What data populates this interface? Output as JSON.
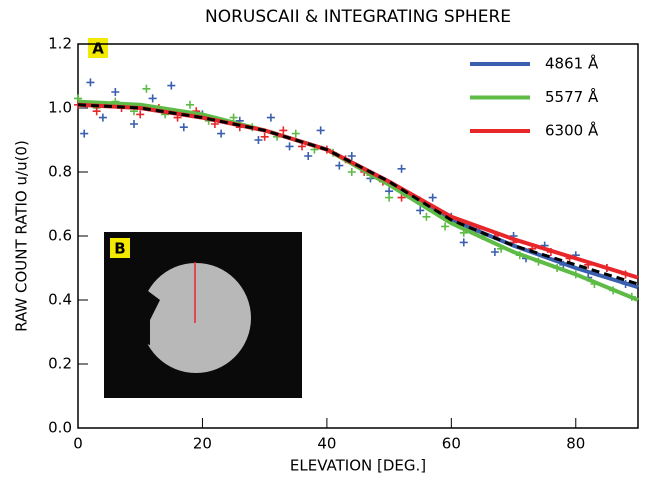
{
  "chart_data": {
    "type": "scatter",
    "title": "NORUSCAII & INTEGRATING SPHERE",
    "x_label": "ELEVATION [DEG.]",
    "y_label": "RAW COUNT RATIO u/u(0)",
    "annotations": [
      "A",
      "B"
    ],
    "xlim": [
      0,
      90
    ],
    "ylim": [
      0,
      1.2
    ],
    "xticks": [
      0,
      20,
      40,
      60,
      80
    ],
    "yticks": [
      {
        "value": 0,
        "label": "0.0"
      },
      0.2,
      0.4,
      0.6,
      0.8,
      {
        "value": 1,
        "label": "1.0"
      },
      1.2
    ],
    "series": [
      {
        "color": "#3a5fae",
        "x": [
          1,
          2,
          4,
          6,
          9,
          12,
          15,
          17,
          20,
          23,
          26,
          29,
          31,
          34,
          37,
          39,
          42,
          44,
          47,
          50,
          52,
          55,
          57,
          60,
          62,
          64,
          67,
          70,
          72,
          75,
          78,
          80,
          82,
          85,
          88
        ],
        "values": [
          0.92,
          1.08,
          0.97,
          1.05,
          0.95,
          1.03,
          1.07,
          0.94,
          0.98,
          0.92,
          0.96,
          0.9,
          0.97,
          0.88,
          0.85,
          0.93,
          0.82,
          0.85,
          0.78,
          0.74,
          0.81,
          0.68,
          0.72,
          0.66,
          0.58,
          0.62,
          0.55,
          0.6,
          0.53,
          0.57,
          0.51,
          0.54,
          0.47,
          0.5,
          0.45
        ]
      },
      {
        "color": "#5dbb46",
        "x": [
          0,
          3,
          6,
          9,
          11,
          14,
          18,
          21,
          25,
          28,
          32,
          35,
          38,
          41,
          44,
          47,
          50,
          53,
          56,
          59,
          62,
          65,
          68,
          71,
          74,
          77,
          80,
          83,
          86,
          89
        ],
        "values": [
          1.03,
          1.0,
          1.02,
          0.99,
          1.06,
          0.98,
          1.01,
          0.96,
          0.97,
          0.94,
          0.91,
          0.92,
          0.87,
          0.86,
          0.8,
          0.79,
          0.72,
          0.73,
          0.66,
          0.63,
          0.61,
          0.6,
          0.56,
          0.54,
          0.52,
          0.5,
          0.48,
          0.45,
          0.43,
          0.41
        ]
      },
      {
        "color": "#e8272a",
        "x": [
          0,
          3,
          7,
          10,
          13,
          16,
          19,
          22,
          26,
          30,
          33,
          36,
          40,
          43,
          46,
          49,
          52,
          55,
          58,
          61,
          64,
          67,
          70,
          73,
          76,
          79,
          82,
          85,
          88
        ],
        "values": [
          1.01,
          0.99,
          1.0,
          0.98,
          1.0,
          0.97,
          0.99,
          0.95,
          0.94,
          0.91,
          0.93,
          0.88,
          0.87,
          0.84,
          0.8,
          0.77,
          0.72,
          0.71,
          0.67,
          0.64,
          0.62,
          0.6,
          0.58,
          0.56,
          0.55,
          0.53,
          0.51,
          0.5,
          0.48
        ]
      }
    ],
    "lines": [
      {
        "name": "4861 Å",
        "color": "#3a5fae",
        "x": [
          0,
          10,
          20,
          30,
          40,
          50,
          60,
          70,
          80,
          90
        ],
        "values": [
          1.02,
          1.0,
          0.97,
          0.93,
          0.87,
          0.77,
          0.65,
          0.57,
          0.5,
          0.44
        ]
      },
      {
        "name": "5577 Å",
        "color": "#5dbb46",
        "x": [
          0,
          10,
          20,
          30,
          40,
          50,
          60,
          70,
          80,
          90
        ],
        "values": [
          1.02,
          1.01,
          0.98,
          0.93,
          0.87,
          0.76,
          0.64,
          0.55,
          0.48,
          0.4
        ]
      },
      {
        "name": "6300 Å",
        "color": "#e8272a",
        "x": [
          0,
          10,
          20,
          30,
          40,
          50,
          60,
          70,
          80,
          90
        ],
        "values": [
          1.01,
          1.0,
          0.97,
          0.93,
          0.87,
          0.77,
          0.66,
          0.59,
          0.53,
          0.47
        ]
      },
      {
        "color": "#000000",
        "dashed": true,
        "x": [
          0,
          10,
          20,
          30,
          40,
          50,
          60,
          70,
          80,
          90
        ],
        "values": [
          1.01,
          1.0,
          0.97,
          0.93,
          0.87,
          0.77,
          0.65,
          0.57,
          0.51,
          0.45
        ]
      }
    ]
  }
}
